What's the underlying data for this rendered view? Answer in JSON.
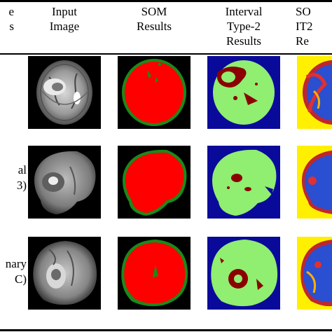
{
  "header": {
    "col0": "e\ns",
    "col1": "Input\nImage",
    "col2": "SOM\nResults",
    "col3": "Interval\nType-2\nResults",
    "col4": "SO\nIT2\nRe"
  },
  "rows": [
    {
      "label": ""
    },
    {
      "label": "\nal\n3)"
    },
    {
      "label": "\nnary\nC)"
    }
  ],
  "colors": {
    "red": "#ff0000",
    "green_light": "#90ee70",
    "green_dark": "#1a8a1a",
    "navy": "#0a0a9a",
    "maroon": "#8b0000",
    "yellow": "#ffef00",
    "black": "#000000"
  }
}
